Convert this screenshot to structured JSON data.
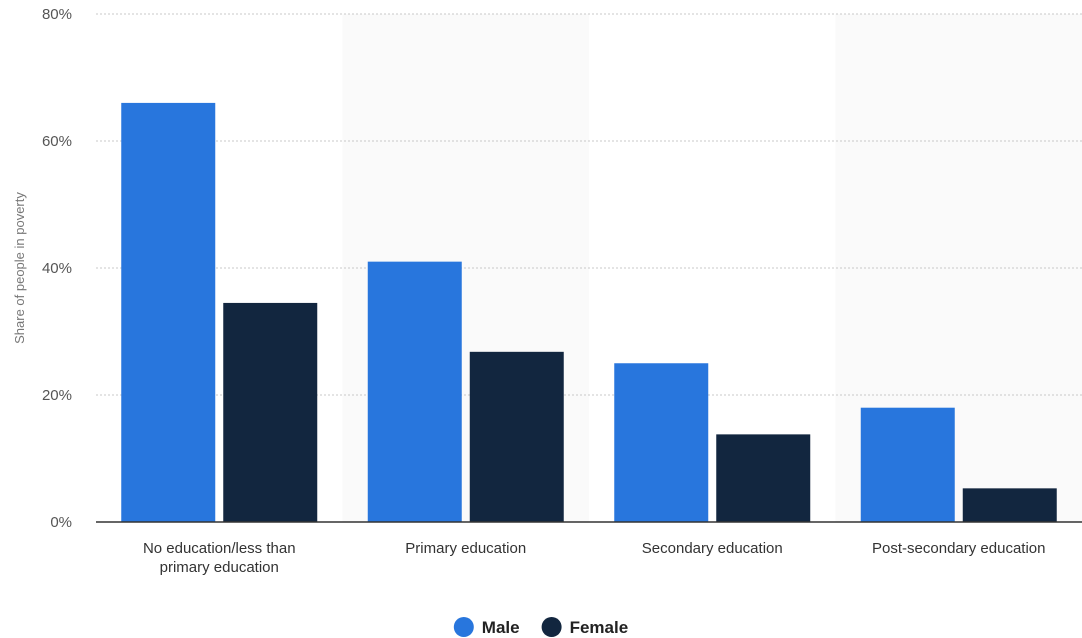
{
  "chart_data": {
    "type": "bar",
    "categories": [
      [
        "No education/less than",
        "primary education"
      ],
      [
        "Primary education"
      ],
      [
        "Secondary education"
      ],
      [
        "Post-secondary education"
      ]
    ],
    "series": [
      {
        "name": "Male",
        "color": "#2876dd",
        "values": [
          66,
          41,
          25,
          18
        ]
      },
      {
        "name": "Female",
        "color": "#12263f",
        "values": [
          34.5,
          26.8,
          13.8,
          5.3
        ]
      }
    ],
    "ylabel": "Share of people in poverty",
    "yticks": [
      "0%",
      "20%",
      "40%",
      "60%",
      "80%"
    ],
    "ylim": [
      0,
      80
    ],
    "grid": true,
    "legend": "bottom-center"
  }
}
